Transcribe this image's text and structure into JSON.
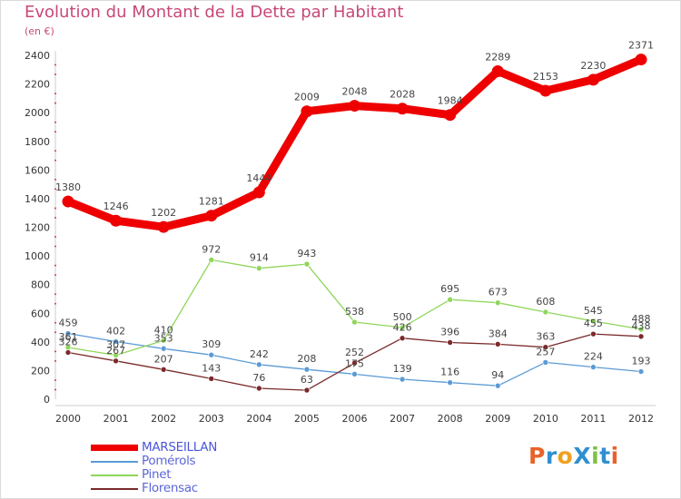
{
  "title": "Evolution du Montant de la Dette par Habitant",
  "subtitle": "(en €)",
  "brand": {
    "text": "ProXiti",
    "letter_colors": [
      "#e8622a",
      "#2f8fd0",
      "#f0a020",
      "#2f8fd0",
      "#7cc242",
      "#2f8fd0",
      "#e8622a"
    ]
  },
  "chart_data": {
    "type": "line",
    "title": "Evolution du Montant de la Dette par Habitant",
    "ylabel": "(en €)",
    "xlabel": "",
    "x": [
      "2000",
      "2001",
      "2002",
      "2003",
      "2004",
      "2005",
      "2006",
      "2007",
      "2008",
      "2009",
      "2010",
      "2011",
      "2012"
    ],
    "ylim": [
      0,
      2400
    ],
    "yticks": [
      0,
      200,
      400,
      600,
      800,
      1000,
      1200,
      1400,
      1600,
      1800,
      2000,
      2200,
      2400
    ],
    "grid": false,
    "legend_position": "bottom-left",
    "series": [
      {
        "name": "MARSEILLAN",
        "color": "#ee0000",
        "values": [
          1380,
          1246,
          1202,
          1281,
          1444,
          2009,
          2048,
          2028,
          1984,
          2289,
          2153,
          2230,
          2371
        ]
      },
      {
        "name": "Pomérols",
        "color": "#5b9bd5",
        "values": [
          459,
          402,
          353,
          309,
          242,
          208,
          175,
          139,
          116,
          94,
          257,
          224,
          193
        ]
      },
      {
        "name": "Pinet",
        "color": "#8fd65a",
        "values": [
          361,
          307,
          410,
          972,
          914,
          943,
          538,
          500,
          695,
          673,
          608,
          545,
          488
        ]
      },
      {
        "name": "Florensac",
        "color": "#7b2a2a",
        "values": [
          326,
          267,
          207,
          143,
          76,
          63,
          252,
          426,
          396,
          384,
          363,
          455,
          438
        ]
      }
    ]
  }
}
